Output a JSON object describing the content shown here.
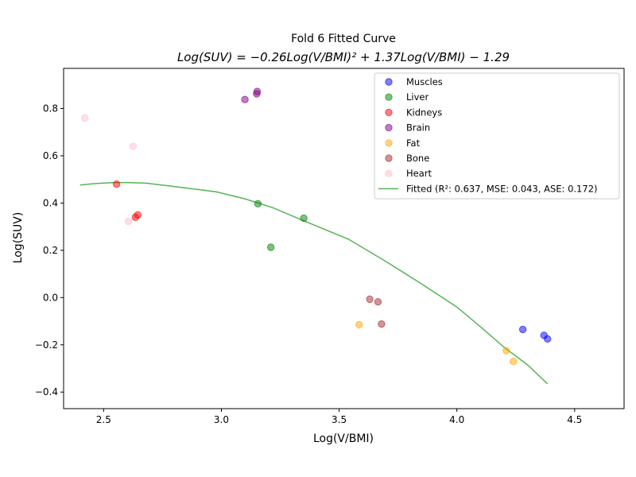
{
  "chart_data": {
    "type": "scatter",
    "title": "Fold 6 Fitted Curve",
    "subtitle": "Log(SUV) = −0.26Log(V/BMI)² + 1.37Log(V/BMI) − 1.29",
    "xlabel": "Log(V/BMI)",
    "ylabel": "Log(SUV)",
    "xlim": [
      2.33,
      4.71
    ],
    "ylim": [
      -0.47,
      0.97
    ],
    "xticks": [
      2.5,
      3.0,
      3.5,
      4.0,
      4.5
    ],
    "xtick_labels": [
      "2.5",
      "3.0",
      "3.5",
      "4.0",
      "4.5"
    ],
    "yticks": [
      -0.4,
      -0.2,
      0.0,
      0.2,
      0.4,
      0.6,
      0.8
    ],
    "ytick_labels": [
      "−0.4",
      "−0.2",
      "0.0",
      "0.2",
      "0.4",
      "0.6",
      "0.8"
    ],
    "grid": false,
    "legend_position": "top-right",
    "series": [
      {
        "name": "Muscles",
        "color": "#0000ff",
        "points": [
          [
            4.28,
            -0.135
          ],
          [
            4.37,
            -0.16
          ],
          [
            4.385,
            -0.175
          ]
        ]
      },
      {
        "name": "Liver",
        "color": "#008000",
        "points": [
          [
            3.155,
            0.397
          ],
          [
            3.35,
            0.336
          ],
          [
            3.21,
            0.213
          ]
        ]
      },
      {
        "name": "Kidneys",
        "color": "#ff0000",
        "points": [
          [
            2.555,
            0.48
          ],
          [
            2.645,
            0.35
          ],
          [
            2.635,
            0.34
          ]
        ]
      },
      {
        "name": "Brain",
        "color": "#800080",
        "points": [
          [
            3.1,
            0.838
          ],
          [
            3.15,
            0.862
          ],
          [
            3.152,
            0.872
          ]
        ]
      },
      {
        "name": "Fat",
        "color": "#ffa500",
        "points": [
          [
            3.585,
            -0.115
          ],
          [
            4.21,
            -0.225
          ],
          [
            4.24,
            -0.27
          ]
        ]
      },
      {
        "name": "Bone",
        "color": "#a52a2a",
        "points": [
          [
            3.63,
            -0.007
          ],
          [
            3.665,
            -0.018
          ],
          [
            3.68,
            -0.112
          ]
        ]
      },
      {
        "name": "Heart",
        "color": "#ffc0cb",
        "points": [
          [
            2.42,
            0.76
          ],
          [
            2.625,
            0.64
          ],
          [
            2.605,
            0.322
          ]
        ]
      }
    ],
    "fitted": {
      "name": "Fitted (R²: 0.637, MSE: 0.043, ASE: 0.172)",
      "color": "#2ca02c",
      "coefficients": [
        -0.26,
        1.37,
        -1.29
      ],
      "x": [
        2.4,
        2.45,
        2.5,
        2.55,
        2.6,
        2.68,
        2.8,
        2.98,
        3.1,
        3.22,
        3.35,
        3.54,
        3.7,
        3.85,
        4.0,
        4.1,
        4.2,
        4.3,
        4.385
      ],
      "y": [
        0.476,
        0.481,
        0.485,
        0.487,
        0.487,
        0.484,
        0.47,
        0.447,
        0.418,
        0.38,
        0.325,
        0.247,
        0.152,
        0.058,
        -0.04,
        -0.123,
        -0.21,
        -0.285,
        -0.365
      ]
    }
  }
}
